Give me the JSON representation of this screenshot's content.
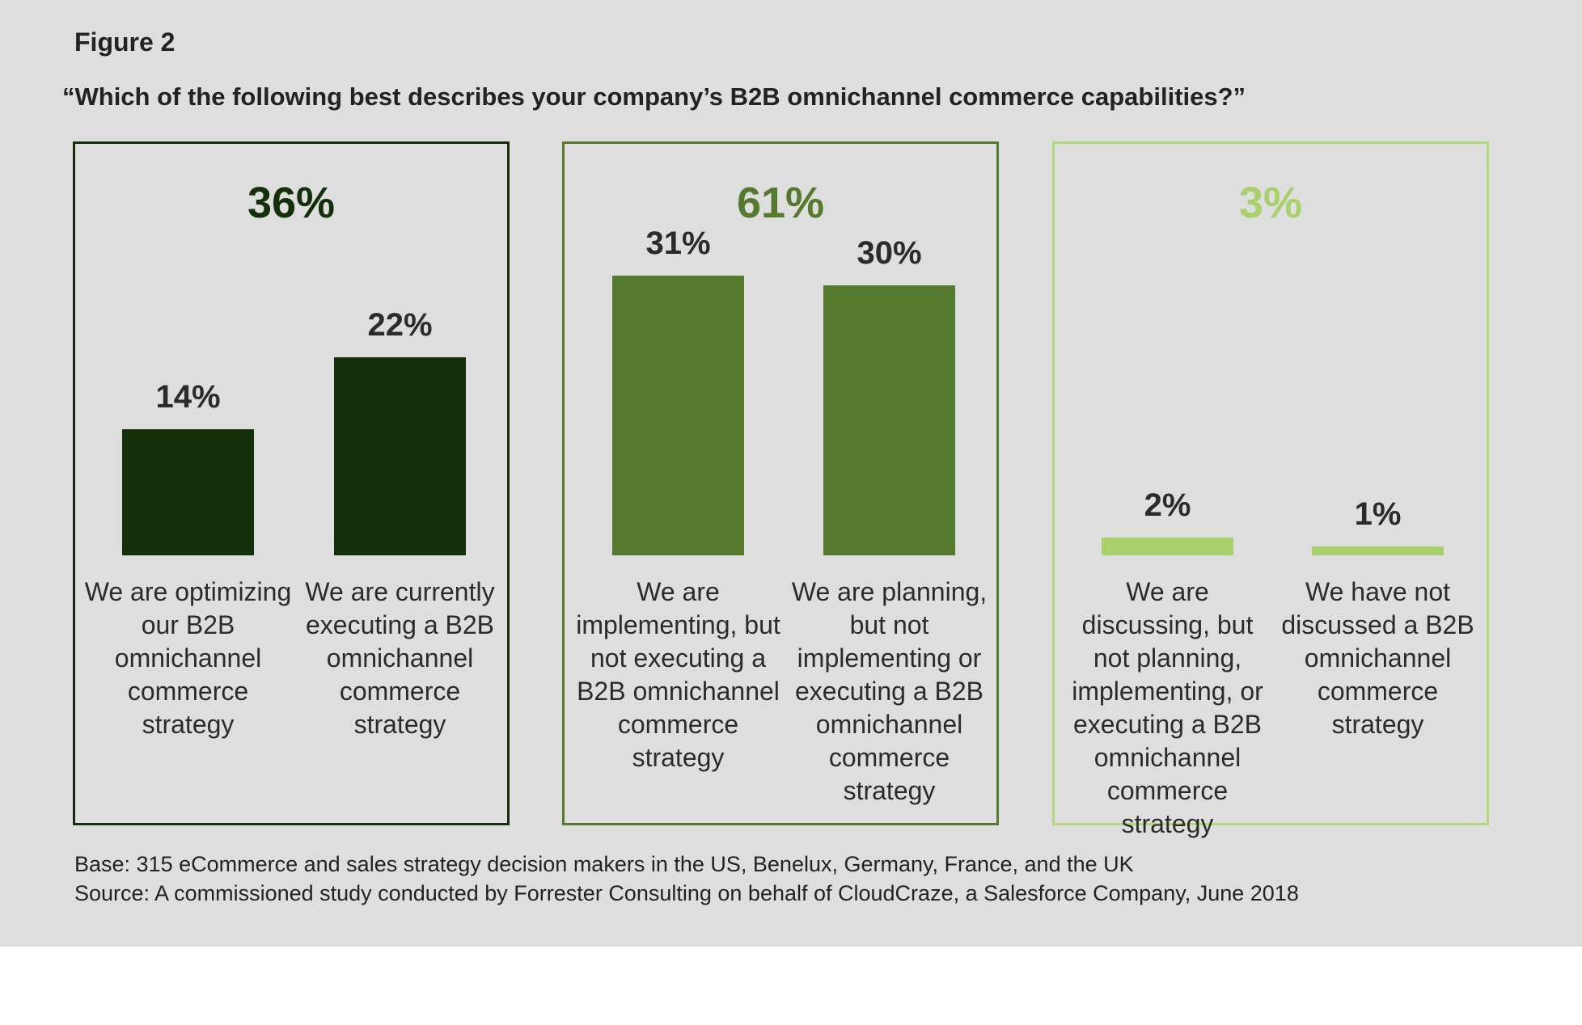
{
  "figure_label": "Figure 2",
  "chart_data": {
    "type": "bar",
    "title": "“Which of the following best describes your company’s B2B omnichannel commerce capabilities?”",
    "ylim": [
      0,
      35
    ],
    "groups": [
      {
        "total": "36%",
        "color": "#13300a",
        "border": "#13300a",
        "bars": [
          {
            "value": 14,
            "label": "14%",
            "category": "We are optimizing our B2B omnichannel commerce strategy"
          },
          {
            "value": 22,
            "label": "22%",
            "category": "We are currently executing a B2B omnichannel commerce strategy"
          }
        ]
      },
      {
        "total": "61%",
        "color": "#557a2e",
        "border": "#557a2e",
        "bars": [
          {
            "value": 31,
            "label": "31%",
            "category": "We are implementing, but not executing a B2B omnichannel commerce strategy"
          },
          {
            "value": 30,
            "label": "30%",
            "category": "We are planning, but not implementing or executing a B2B omnichannel commerce strategy"
          }
        ]
      },
      {
        "total": "3%",
        "color": "#a9d16b",
        "border": "#b3d77b",
        "bars": [
          {
            "value": 2,
            "label": "2%",
            "category": "We are discussing, but not planning, implementing, or executing a B2B omnichannel commerce strategy"
          },
          {
            "value": 1,
            "label": "1%",
            "category": "We have not discussed a B2B omnichannel commerce strategy"
          }
        ]
      }
    ]
  },
  "footer": {
    "base": "Base: 315 eCommerce and sales strategy decision makers in the US, Benelux, Germany, France, and the UK",
    "source": "Source: A commissioned study conducted by Forrester Consulting on behalf of CloudCraze, a Salesforce Company, June 2018"
  }
}
